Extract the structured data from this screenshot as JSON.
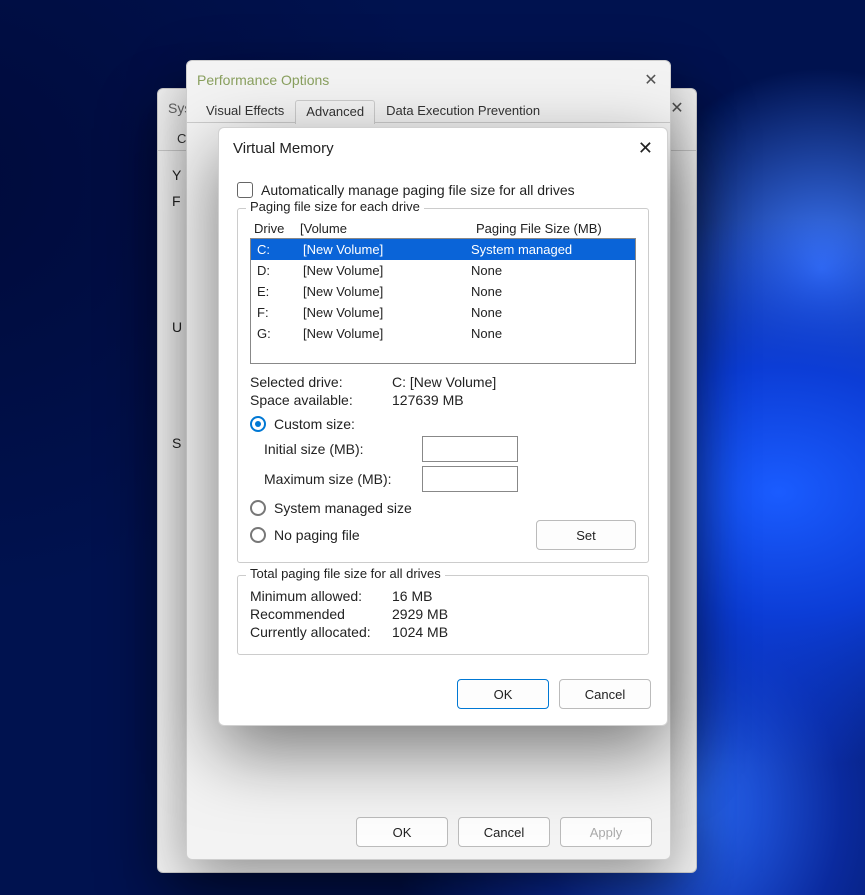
{
  "sysprops": {
    "title": "Syste",
    "tabs": {
      "t0": "Com"
    },
    "stub_y": "Y",
    "stub_f": "F",
    "stub_u": "U",
    "stub_s": "S"
  },
  "perf": {
    "title": "Performance Options",
    "tabs": {
      "visual": "Visual Effects",
      "advanced": "Advanced",
      "dep": "Data Execution Prevention"
    },
    "buttons": {
      "ok": "OK",
      "cancel": "Cancel",
      "apply": "Apply"
    }
  },
  "vm": {
    "title": "Virtual Memory",
    "auto_manage": "Automatically manage paging file size for all drives",
    "fs_each": "Paging file size for each drive",
    "hdr_drive": "Drive",
    "hdr_volume": "[Volume",
    "hdr_pfs": "Paging File Size (MB)",
    "drives": [
      {
        "letter": "C:",
        "volume": "[New Volume]",
        "pfs": "System managed",
        "selected": true
      },
      {
        "letter": "D:",
        "volume": "[New Volume]",
        "pfs": "None",
        "selected": false
      },
      {
        "letter": "E:",
        "volume": "[New Volume]",
        "pfs": "None",
        "selected": false
      },
      {
        "letter": "F:",
        "volume": "[New Volume]",
        "pfs": "None",
        "selected": false
      },
      {
        "letter": "G:",
        "volume": "[New Volume]",
        "pfs": "None",
        "selected": false
      }
    ],
    "selected_drive_label": "Selected drive:",
    "selected_drive_value": "C:  [New Volume]",
    "space_label": "Space available:",
    "space_value": "127639 MB",
    "custom_size": "Custom size:",
    "initial_label": "Initial size (MB):",
    "max_label": "Maximum size (MB):",
    "sys_managed": "System managed size",
    "no_paging": "No paging file",
    "set_btn": "Set",
    "fs_total": "Total paging file size for all drives",
    "min_label": "Minimum allowed:",
    "min_value": "16 MB",
    "rec_label": "Recommended",
    "rec_value": "2929 MB",
    "cur_label": "Currently allocated:",
    "cur_value": "1024 MB",
    "ok": "OK",
    "cancel": "Cancel"
  },
  "style": {
    "accent": "#0078d4",
    "row_select_bg": "#0a64d8",
    "dialog_bg": "#ffffff",
    "window_bg": "#f3f3f3"
  }
}
